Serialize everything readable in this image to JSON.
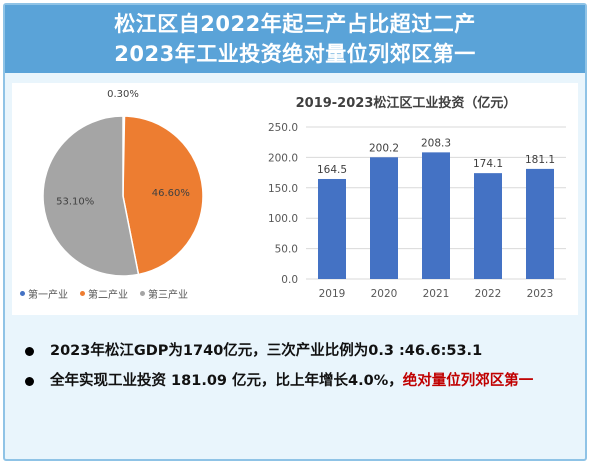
{
  "header": {
    "line1": "松江区自2022年起三产占比超过二产",
    "line2": "2023年工业投资绝对量位列郊区第一"
  },
  "colors": {
    "header_bg": "#5aa3d8",
    "primary": "#4472c4",
    "secondary": "#ed7d31",
    "tertiary": "#a5a5a5",
    "bar": "#4472c4",
    "highlight": "#c00000"
  },
  "chart_data": [
    {
      "type": "pie",
      "title": "",
      "labels": [
        "第一产业",
        "第二产业",
        "第三产业"
      ],
      "values": [
        0.3,
        46.6,
        53.1
      ],
      "value_labels": [
        "0.30%",
        "46.60%",
        "53.10%"
      ],
      "legend_position": "bottom"
    },
    {
      "type": "bar",
      "title": "2019-2023松江区工业投资（亿元）",
      "categories": [
        "2019",
        "2020",
        "2021",
        "2022",
        "2023"
      ],
      "values": [
        164.5,
        200.2,
        208.3,
        174.1,
        181.1
      ],
      "value_labels": [
        "164.5",
        "200.2",
        "208.3",
        "174.1",
        "181.1"
      ],
      "ylim": [
        0,
        250
      ],
      "yticks": [
        "0.0",
        "50.0",
        "100.0",
        "150.0",
        "200.0",
        "250.0"
      ],
      "grid": true
    }
  ],
  "bullets": [
    {
      "text": "2023年松江GDP为1740亿元，三次产业比例为0.3 :46.6:53.1",
      "highlight": ""
    },
    {
      "text": "全年实现工业投资 181.09 亿元，比上年增长4.0%，",
      "highlight": "绝对量位列郊区第一"
    }
  ]
}
